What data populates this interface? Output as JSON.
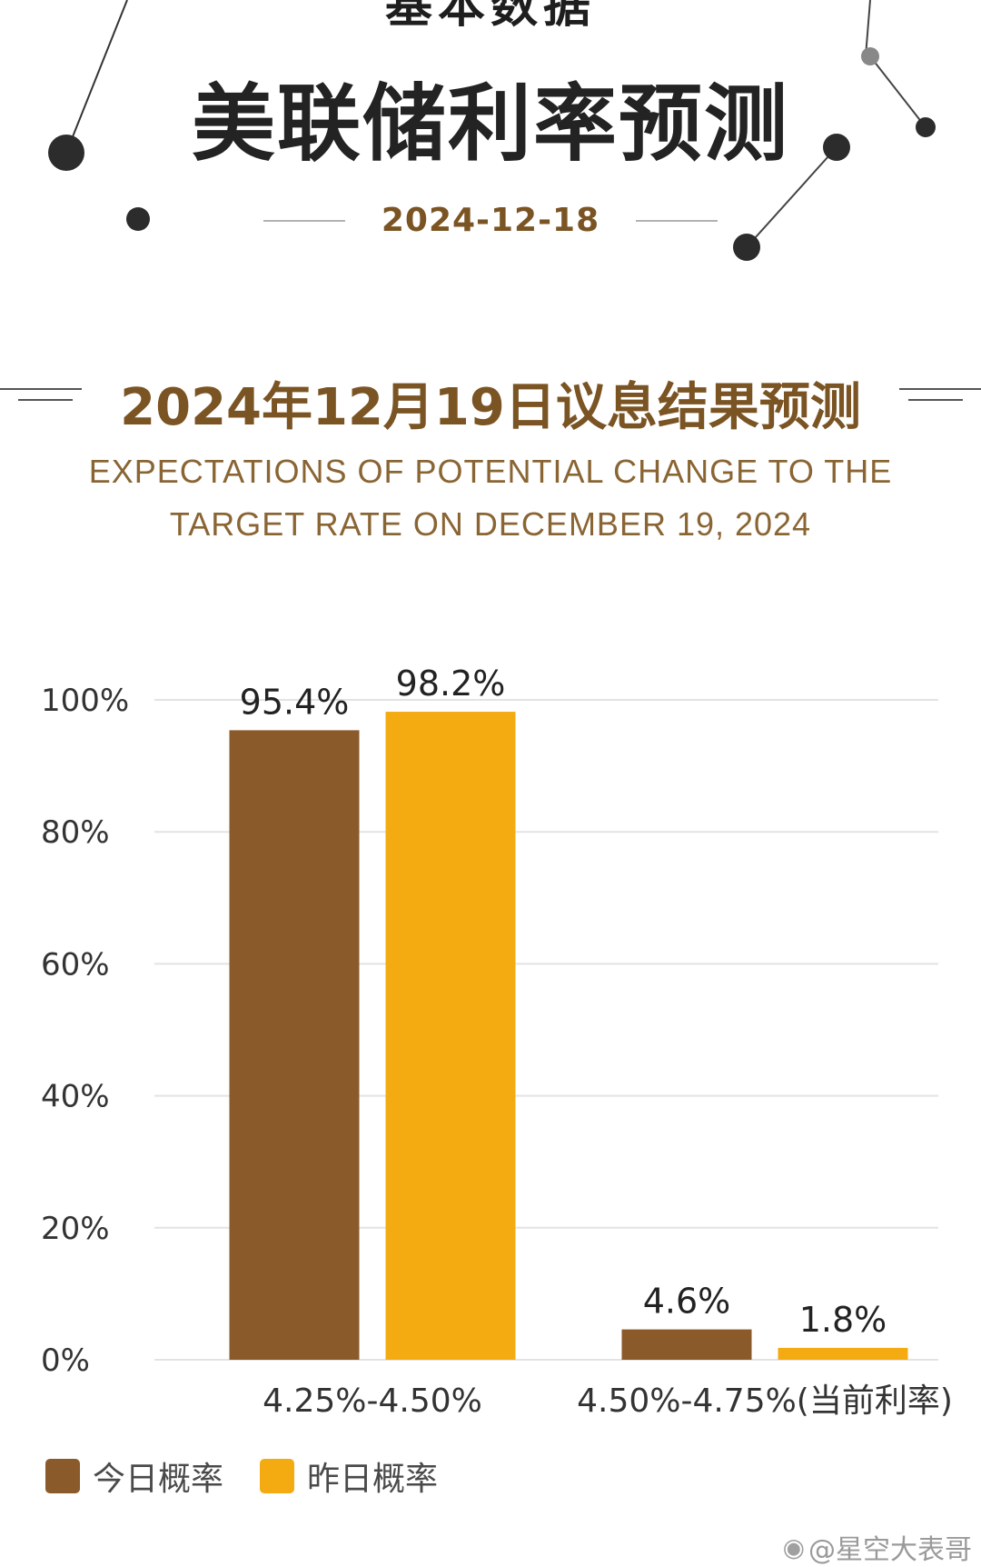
{
  "header": {
    "partial_text": "基本数据",
    "title": "美联储利率预测",
    "date": "2024-12-18"
  },
  "section": {
    "title": "2024年12月19日议息结果预测",
    "subtitle_line1": "EXPECTATIONS OF POTENTIAL CHANGE TO THE",
    "subtitle_line2": "TARGET RATE ON DECEMBER 19, 2024"
  },
  "chart_data": {
    "type": "bar",
    "categories": [
      "4.25%-4.50%",
      "4.50%-4.75%(当前利率)"
    ],
    "series": [
      {
        "name": "今日概率",
        "values": [
          95.4,
          4.6
        ],
        "labels": [
          "95.4%",
          "4.6%"
        ]
      },
      {
        "name": "昨日概率",
        "values": [
          98.2,
          1.8
        ],
        "labels": [
          "98.2%",
          "1.8%"
        ]
      }
    ],
    "ylim": [
      0,
      100
    ],
    "yticks": [
      0,
      20,
      40,
      60,
      80,
      100
    ],
    "ytick_labels": [
      "0%",
      "20%",
      "40%",
      "60%",
      "80%",
      "100%"
    ],
    "grid": true,
    "legend_position": "bottom-left"
  },
  "colors": {
    "today": "#8b5a2b",
    "yesterday": "#f4ab12",
    "accent": "#7b5424",
    "grid": "#e3e3e3"
  },
  "legend": {
    "items": [
      {
        "label": "今日概率",
        "color": "#8b5a2b"
      },
      {
        "label": "昨日概率",
        "color": "#f4ab12"
      }
    ]
  },
  "watermark": {
    "icon": "weibo-icon",
    "text": "@星空大表哥"
  }
}
